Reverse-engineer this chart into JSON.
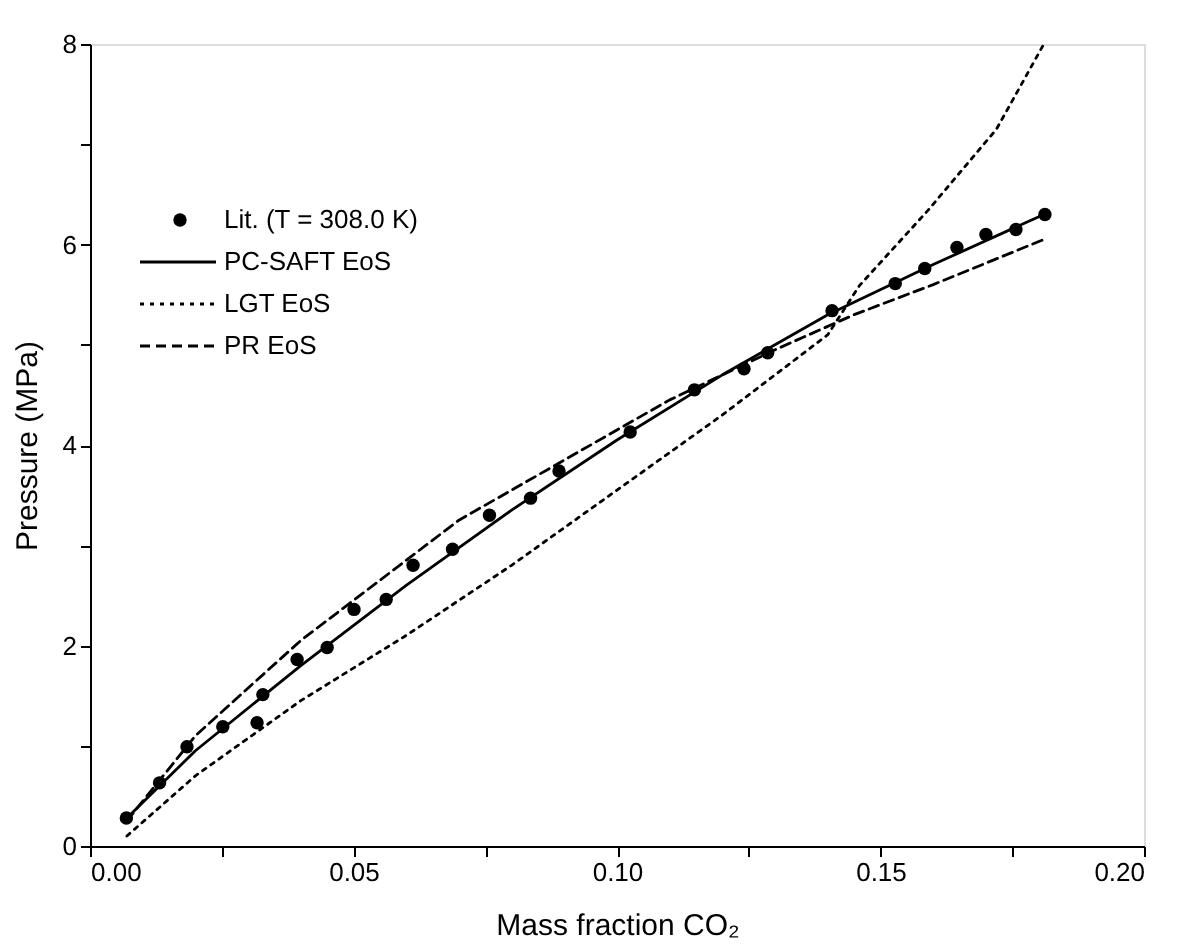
{
  "chart_data": {
    "type": "line",
    "xlabel": "Mass fraction CO₂",
    "ylabel": "Pressure (MPa)",
    "xlim": [
      0,
      0.2
    ],
    "ylim": [
      0,
      8
    ],
    "xticks": [
      {
        "value": 0,
        "label": "0.00"
      },
      {
        "value": 0.025,
        "label": null
      },
      {
        "value": 0.05,
        "label": "0.05"
      },
      {
        "value": 0.075,
        "label": null
      },
      {
        "value": 0.1,
        "label": "0.10"
      },
      {
        "value": 0.125,
        "label": null
      },
      {
        "value": 0.15,
        "label": "0.15"
      },
      {
        "value": 0.175,
        "label": null
      },
      {
        "value": 0.2,
        "label": "0.20"
      }
    ],
    "yticks": [
      0,
      {
        "value": 1,
        "label": null
      },
      2,
      {
        "value": 3,
        "label": null
      },
      4,
      {
        "value": 5,
        "label": null
      },
      6,
      {
        "value": 7,
        "label": null
      },
      8
    ],
    "legend": "top left",
    "series": [
      {
        "name": "Lit. (T = 308.0 K)",
        "type": "scatter",
        "marker": "circle",
        "color": "#000000",
        "x": [
          0.0069,
          0.0132,
          0.0184,
          0.0252,
          0.0317,
          0.0328,
          0.0393,
          0.045,
          0.0501,
          0.0562,
          0.0613,
          0.0688,
          0.0758,
          0.0836,
          0.089,
          0.1025,
          0.1147,
          0.1241,
          0.1286,
          0.1408,
          0.1528,
          0.1584,
          0.1645,
          0.17,
          0.1757,
          0.1812
        ],
        "values": [
          0.28,
          0.63,
          0.99,
          1.19,
          1.23,
          1.51,
          1.86,
          1.98,
          2.36,
          2.46,
          2.8,
          2.96,
          3.3,
          3.47,
          3.74,
          4.13,
          4.55,
          4.76,
          4.92,
          5.34,
          5.61,
          5.76,
          5.97,
          6.1,
          6.15,
          6.3
        ]
      },
      {
        "name": "PC-SAFT EoS",
        "line_style": "solid",
        "color": "#000000",
        "x": [
          0.007,
          0.02,
          0.04,
          0.06,
          0.08,
          0.1,
          0.12,
          0.14,
          0.16,
          0.181
        ],
        "values": [
          0.28,
          0.95,
          1.8,
          2.6,
          3.35,
          4.05,
          4.7,
          5.3,
          5.8,
          6.3
        ]
      },
      {
        "name": "LGT EoS",
        "line_style": "dotted",
        "color": "#000000",
        "x": [
          0.007,
          0.02,
          0.04,
          0.06,
          0.08,
          0.1,
          0.12,
          0.14,
          0.146,
          0.159,
          0.172,
          0.181
        ],
        "values": [
          0.1,
          0.7,
          1.45,
          2.1,
          2.8,
          3.55,
          4.3,
          5.1,
          5.59,
          6.34,
          7.15,
          8.0
        ]
      },
      {
        "name": "PR EoS",
        "line_style": "dashed",
        "color": "#000000",
        "x": [
          0.007,
          0.02,
          0.04,
          0.06,
          0.07,
          0.09,
          0.11,
          0.13,
          0.145,
          0.16,
          0.181
        ],
        "values": [
          0.25,
          1.1,
          2.05,
          2.85,
          3.25,
          3.85,
          4.45,
          4.95,
          5.3,
          5.6,
          6.05
        ]
      }
    ]
  }
}
